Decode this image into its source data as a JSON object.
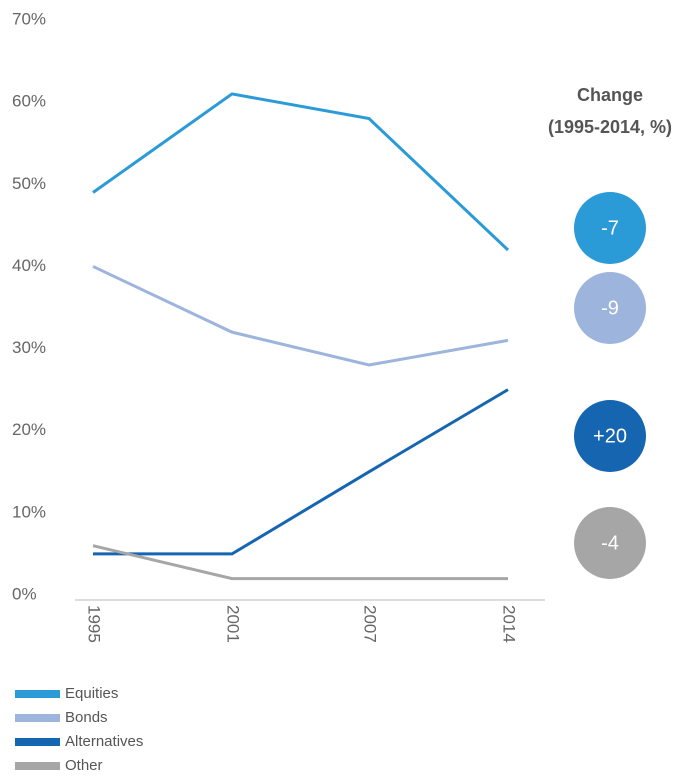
{
  "chart_data": {
    "type": "line",
    "categories": [
      "1995",
      "2001",
      "2007",
      "2014"
    ],
    "series": [
      {
        "name": "Equities",
        "color": "#2b9bd8",
        "values": [
          49,
          61,
          58,
          42
        ],
        "change": "-7"
      },
      {
        "name": "Bonds",
        "color": "#9db4dc",
        "values": [
          40,
          32,
          28,
          31
        ],
        "change": "-9"
      },
      {
        "name": "Alternatives",
        "color": "#1565b0",
        "values": [
          5,
          5,
          15,
          25
        ],
        "change": "+20"
      },
      {
        "name": "Other",
        "color": "#a6a6a6",
        "values": [
          6,
          2,
          2,
          2
        ],
        "change": "-4"
      }
    ],
    "change_title": "Change",
    "change_subtitle": "(1995-2014, %)",
    "ylim": [
      0,
      70
    ],
    "yticks": [
      {
        "value": 0,
        "label": "0%"
      },
      {
        "value": 10,
        "label": "10%"
      },
      {
        "value": 20,
        "label": "20%"
      },
      {
        "value": 30,
        "label": "30%"
      },
      {
        "value": 40,
        "label": "40%"
      },
      {
        "value": 50,
        "label": "50%"
      },
      {
        "value": 60,
        "label": "60%"
      },
      {
        "value": 70,
        "label": "70%"
      }
    ],
    "grid": false
  }
}
